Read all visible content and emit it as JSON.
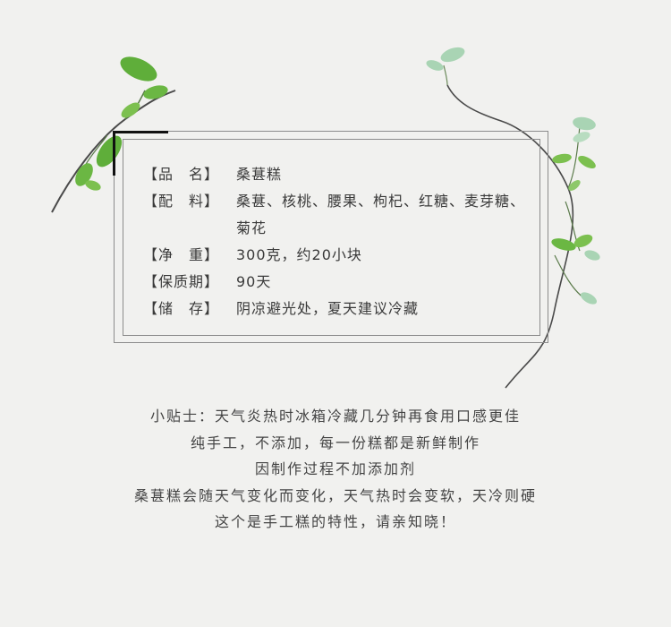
{
  "product": {
    "rows": [
      {
        "label": "【品　名】",
        "value": "桑葚糕"
      },
      {
        "label": "【配　料】",
        "value": "桑葚、核桃、腰果、枸杞、红糖、麦芽糖、菊花"
      },
      {
        "label": "【净　重】",
        "value": "300克，约20小块"
      },
      {
        "label": "【保质期】",
        "value": "90天"
      },
      {
        "label": "【储　存】",
        "value": "阴凉避光处，夏天建议冷藏"
      }
    ]
  },
  "tips": {
    "lines": [
      "小贴士：天气炎热时冰箱冷藏几分钟再食用口感更佳",
      "纯手工，不添加，每一份糕都是新鲜制作",
      "因制作过程不加添加剂",
      "桑葚糕会随天气变化而变化，天气热时会变软，天冷则硬",
      "这个是手工糕的特性，请亲知晓！"
    ]
  },
  "colors": {
    "background": "#f1f1ef",
    "frame": "#8c8c8c",
    "leaf": "#5fae3a",
    "leaf_light": "#a9d4b4",
    "stem": "#4a4a4a"
  }
}
